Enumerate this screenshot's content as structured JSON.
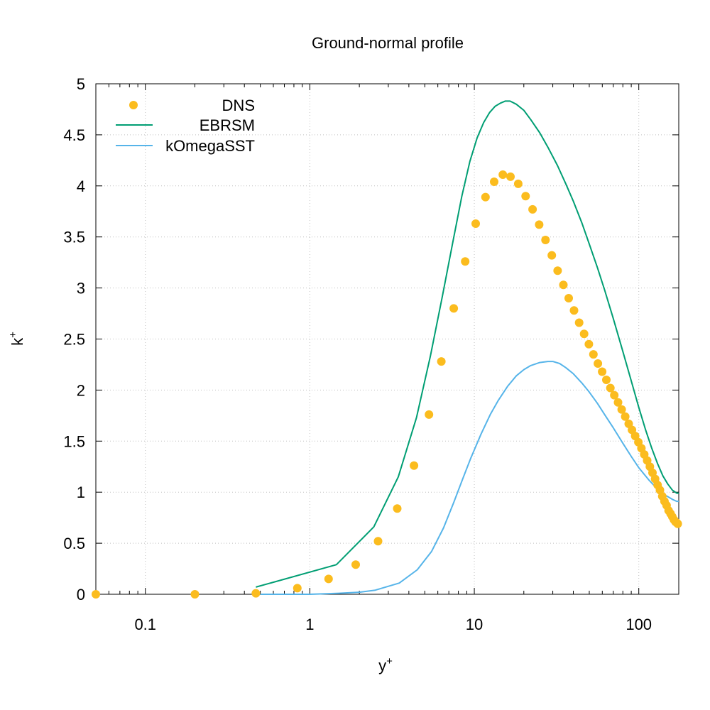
{
  "chart_data": {
    "type": "line",
    "title": "Ground-normal profile",
    "xlabel": {
      "base": "y",
      "sup": "+"
    },
    "ylabel": {
      "base": "k",
      "sup": "+"
    },
    "xscale": "log",
    "xlim": [
      0.05,
      175
    ],
    "ylim": [
      0,
      5
    ],
    "grid": true,
    "legend_position": "top-left",
    "x_ticks": [
      {
        "value": 0.1,
        "label": "0.1"
      },
      {
        "value": 1,
        "label": "1"
      },
      {
        "value": 10,
        "label": "10"
      },
      {
        "value": 100,
        "label": "100"
      }
    ],
    "y_ticks": [
      {
        "value": 0,
        "label": "0"
      },
      {
        "value": 0.5,
        "label": "0.5"
      },
      {
        "value": 1,
        "label": "1"
      },
      {
        "value": 1.5,
        "label": "1.5"
      },
      {
        "value": 2,
        "label": "2"
      },
      {
        "value": 2.5,
        "label": "2.5"
      },
      {
        "value": 3,
        "label": "3"
      },
      {
        "value": 3.5,
        "label": "3.5"
      },
      {
        "value": 4,
        "label": "4"
      },
      {
        "value": 4.5,
        "label": "4.5"
      },
      {
        "value": 5,
        "label": "5"
      }
    ],
    "series": [
      {
        "name": "DNS",
        "style": "points",
        "color": "#fbbc1e",
        "x": [
          0.05,
          0.2,
          0.47,
          0.84,
          1.3,
          1.9,
          2.6,
          3.4,
          4.3,
          5.3,
          6.3,
          7.5,
          8.8,
          10.2,
          11.7,
          13.2,
          14.9,
          16.6,
          18.5,
          20.5,
          22.6,
          24.8,
          27.1,
          29.6,
          32.1,
          34.8,
          37.5,
          40.4,
          43.4,
          46.5,
          49.7,
          53.0,
          56.4,
          59.9,
          63.5,
          67.2,
          71.0,
          74.8,
          78.7,
          82.7,
          86.8,
          90.9,
          95.1,
          99.4,
          103.7,
          108.0,
          112.4,
          116.8,
          121.2,
          125.7,
          130.1,
          134.5,
          138.9,
          143.3,
          147.6,
          151.8,
          155.9,
          159.8,
          163.5,
          167.0,
          170.0,
          172.5
        ],
        "y": [
          0.0,
          0.0,
          0.01,
          0.06,
          0.15,
          0.29,
          0.52,
          0.84,
          1.26,
          1.76,
          2.28,
          2.8,
          3.26,
          3.63,
          3.89,
          4.04,
          4.11,
          4.09,
          4.02,
          3.9,
          3.77,
          3.62,
          3.47,
          3.32,
          3.17,
          3.03,
          2.9,
          2.78,
          2.66,
          2.55,
          2.45,
          2.35,
          2.26,
          2.18,
          2.1,
          2.02,
          1.95,
          1.88,
          1.81,
          1.74,
          1.67,
          1.61,
          1.55,
          1.49,
          1.43,
          1.37,
          1.31,
          1.25,
          1.19,
          1.13,
          1.07,
          1.02,
          0.96,
          0.91,
          0.87,
          0.82,
          0.79,
          0.76,
          0.73,
          0.71,
          0.7,
          0.69
        ]
      },
      {
        "name": "EBRSM",
        "style": "line",
        "color": "#009e73",
        "x": [
          0.47,
          1.45,
          2.45,
          3.45,
          4.45,
          5.4,
          6.4,
          7.4,
          8.4,
          9.4,
          10.4,
          11.4,
          12.4,
          13.4,
          14.4,
          15.4,
          16.5,
          18,
          20,
          22,
          25,
          28,
          32,
          36,
          40,
          45,
          50,
          56,
          62,
          70,
          80,
          90,
          100,
          110,
          120,
          130,
          140,
          150,
          160,
          170,
          175
        ],
        "y": [
          0.07,
          0.29,
          0.66,
          1.15,
          1.73,
          2.33,
          2.92,
          3.45,
          3.9,
          4.24,
          4.47,
          4.62,
          4.72,
          4.78,
          4.81,
          4.83,
          4.83,
          4.8,
          4.74,
          4.65,
          4.52,
          4.38,
          4.2,
          4.02,
          3.85,
          3.64,
          3.43,
          3.2,
          2.98,
          2.7,
          2.38,
          2.09,
          1.83,
          1.61,
          1.43,
          1.28,
          1.16,
          1.08,
          1.02,
          0.99,
          0.99
        ]
      },
      {
        "name": "kOmegaSST",
        "style": "line",
        "color": "#56b4e9",
        "x": [
          0.5,
          1.0,
          1.5,
          2.0,
          2.5,
          3.5,
          4.5,
          5.5,
          6.5,
          7.5,
          8.5,
          9.5,
          11,
          12.5,
          14,
          16,
          18,
          20,
          22,
          25,
          28,
          30,
          33,
          36,
          40,
          45,
          50,
          56,
          62,
          70,
          80,
          90,
          100,
          115,
          130,
          145,
          160,
          170,
          175
        ],
        "y": [
          0.0,
          0.0,
          0.01,
          0.02,
          0.04,
          0.11,
          0.24,
          0.42,
          0.65,
          0.9,
          1.13,
          1.33,
          1.57,
          1.76,
          1.9,
          2.04,
          2.14,
          2.2,
          2.24,
          2.27,
          2.28,
          2.28,
          2.26,
          2.22,
          2.16,
          2.07,
          1.98,
          1.87,
          1.76,
          1.63,
          1.48,
          1.35,
          1.24,
          1.12,
          1.03,
          0.97,
          0.93,
          0.91,
          0.91
        ]
      }
    ]
  }
}
